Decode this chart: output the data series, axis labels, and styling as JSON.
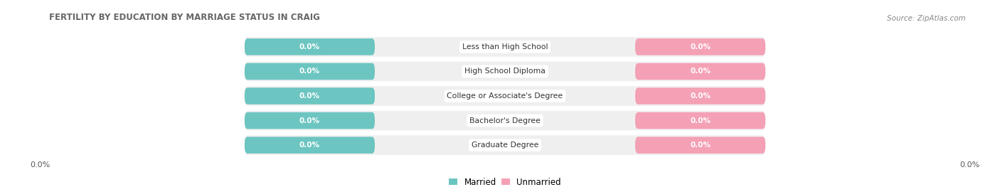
{
  "title": "FERTILITY BY EDUCATION BY MARRIAGE STATUS IN CRAIG",
  "source": "Source: ZipAtlas.com",
  "categories": [
    "Less than High School",
    "High School Diploma",
    "College or Associate's Degree",
    "Bachelor's Degree",
    "Graduate Degree"
  ],
  "married_values": [
    0.0,
    0.0,
    0.0,
    0.0,
    0.0
  ],
  "unmarried_values": [
    0.0,
    0.0,
    0.0,
    0.0,
    0.0
  ],
  "married_color": "#6cc5c1",
  "unmarried_color": "#f4a0b5",
  "row_bg_color": "#efefef",
  "figsize": [
    14.06,
    2.7
  ],
  "dpi": 100,
  "x_tick_label_left": "0.0%",
  "x_tick_label_right": "0.0%"
}
